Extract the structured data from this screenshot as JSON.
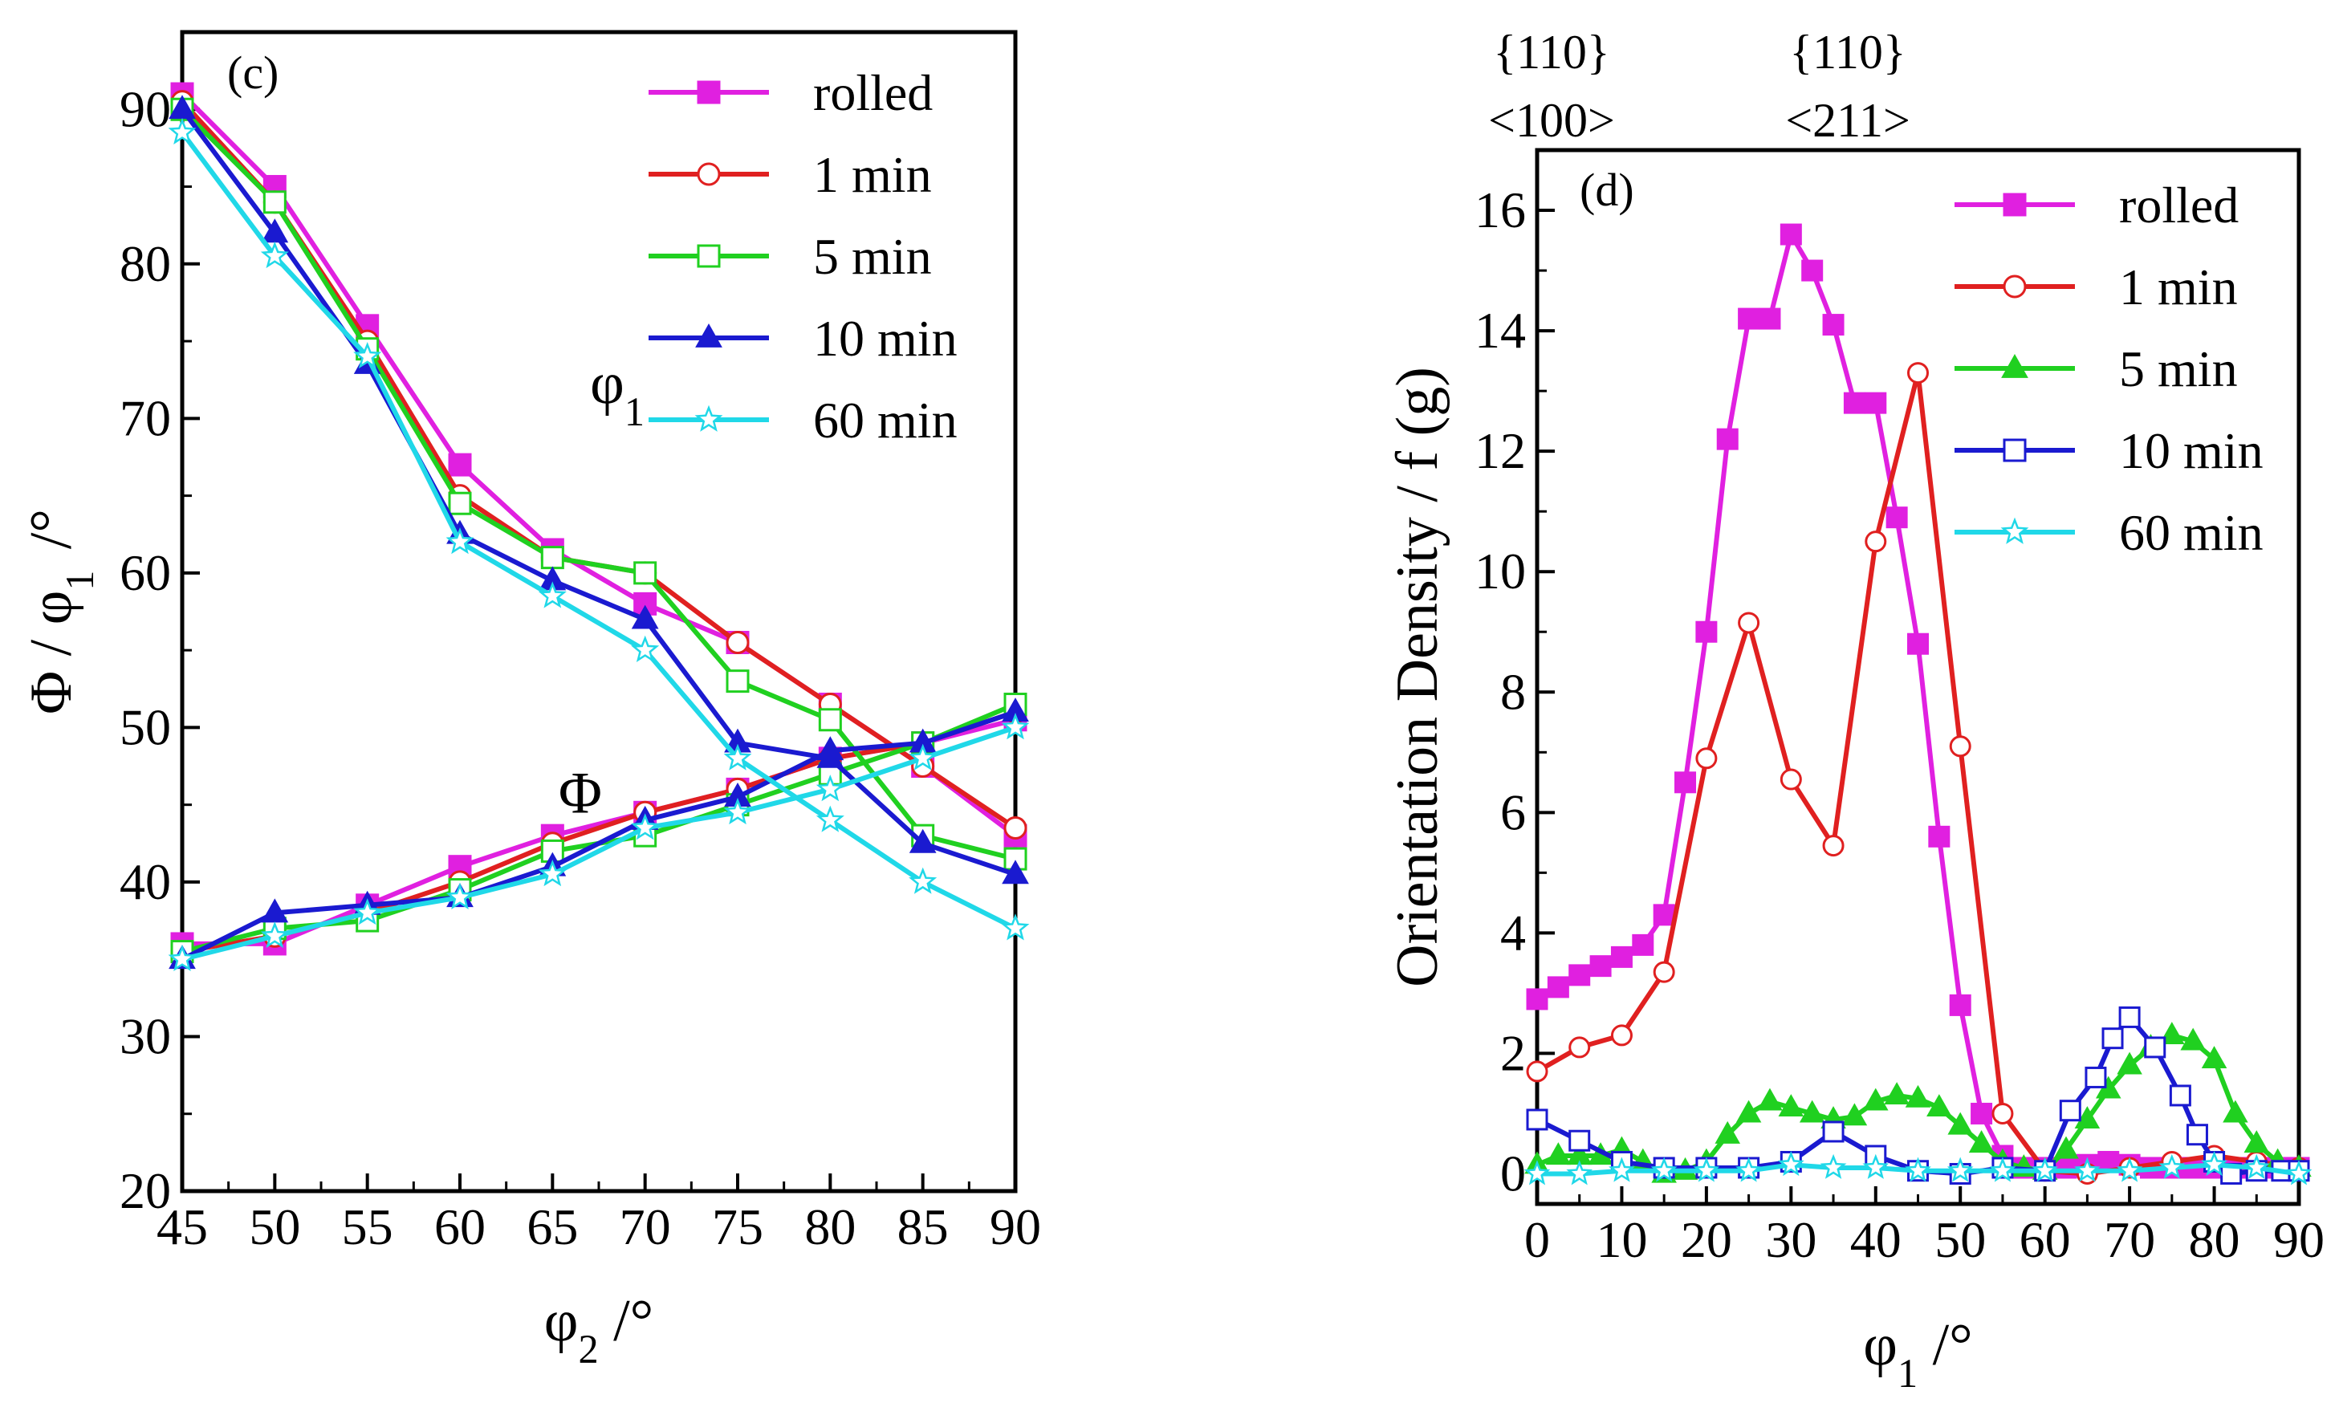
{
  "chart_data": [
    {
      "type": "line",
      "panel": "(c)",
      "xlabel": "φ2 /°",
      "ylabel": "Φ / φ1 /°",
      "xlim": [
        45,
        90
      ],
      "ylim": [
        20,
        95
      ],
      "xticks": [
        45,
        50,
        55,
        60,
        65,
        70,
        75,
        80,
        85,
        90
      ],
      "yticks": [
        20,
        30,
        40,
        50,
        60,
        70,
        80,
        90
      ],
      "legend_position": "top-right",
      "annotations": [
        {
          "text": "φ1",
          "x": 68.5,
          "y": 71
        },
        {
          "text": "Φ",
          "x": 66.5,
          "y": 44.5
        }
      ],
      "x": [
        45,
        50,
        55,
        60,
        65,
        70,
        75,
        80,
        85,
        90
      ],
      "series": [
        {
          "name": "rolled",
          "color": "#e020e0",
          "marker": "square-filled",
          "phi1": [
            91,
            85,
            76,
            67,
            61.5,
            58,
            55.5,
            51.5,
            47.5,
            43
          ],
          "Phi": [
            36,
            36,
            38.5,
            41,
            43,
            44.5,
            46,
            48,
            49,
            50.5
          ]
        },
        {
          "name": "1 min",
          "color": "#e02020",
          "marker": "circle-open",
          "phi1": [
            90.5,
            84,
            75,
            65,
            61,
            60,
            55.5,
            51.5,
            47.5,
            43.5
          ],
          "Phi": [
            35.5,
            36.5,
            38,
            40,
            42.5,
            44.5,
            46,
            48,
            49,
            51
          ]
        },
        {
          "name": "5 min",
          "color": "#20d020",
          "marker": "square-open",
          "phi1": [
            90,
            84,
            74.5,
            64.5,
            61,
            60,
            53,
            50.5,
            43,
            41.5
          ],
          "Phi": [
            35.5,
            37,
            37.5,
            39.5,
            42,
            43,
            45,
            47,
            49,
            51.5
          ]
        },
        {
          "name": "10 min",
          "color": "#1a1ad0",
          "marker": "triangle-filled",
          "phi1": [
            90,
            82,
            73.5,
            62.5,
            59.5,
            57,
            49,
            48,
            42.5,
            40.5
          ],
          "Phi": [
            35,
            38,
            38.5,
            39,
            41,
            44,
            45.5,
            48.5,
            49,
            51
          ]
        },
        {
          "name": "60 min",
          "color": "#20d8e8",
          "marker": "star-open",
          "phi1": [
            88.5,
            80.5,
            74,
            62,
            58.5,
            55,
            48,
            44,
            40,
            37
          ],
          "Phi": [
            35,
            36.5,
            38,
            39,
            40.5,
            43.5,
            44.5,
            46,
            48,
            50
          ]
        }
      ]
    },
    {
      "type": "line",
      "panel": "(d)",
      "xlabel": "φ1 /°",
      "ylabel": "Orientation Density / f (g)",
      "xlim": [
        0,
        90
      ],
      "ylim": [
        -0.5,
        17
      ],
      "xticks": [
        0,
        10,
        20,
        30,
        40,
        50,
        60,
        70,
        80,
        90
      ],
      "yticks": [
        0,
        2,
        4,
        6,
        8,
        10,
        12,
        14,
        16
      ],
      "legend_position": "top-right",
      "top_labels": [
        {
          "plane": "{110}",
          "direction": "<100>",
          "x": 0
        },
        {
          "plane": "{110}",
          "direction": "<211>",
          "x": 35
        }
      ],
      "series": [
        {
          "name": "rolled",
          "color": "#e020e0",
          "marker": "square-filled",
          "x": [
            0,
            2.5,
            5,
            7.5,
            10,
            12.5,
            15,
            17.5,
            20,
            22.5,
            25,
            27.5,
            30,
            32.5,
            35,
            37.5,
            40,
            42.5,
            45,
            47.5,
            50,
            52.5,
            55,
            57.5,
            60,
            62.5,
            65,
            67.5,
            70,
            72.5,
            75,
            77.5,
            80,
            82.5,
            85,
            87.5,
            90
          ],
          "values": [
            2.9,
            3.1,
            3.3,
            3.45,
            3.6,
            3.8,
            4.3,
            6.5,
            9.0,
            12.2,
            14.2,
            14.2,
            15.6,
            15.0,
            14.1,
            12.8,
            12.8,
            10.9,
            8.8,
            5.6,
            2.8,
            1.0,
            0.3,
            0.1,
            0.1,
            0.1,
            0.15,
            0.2,
            0.15,
            0.1,
            0.1,
            0.1,
            0.1,
            0.1,
            0.1,
            0.1,
            0.1
          ]
        },
        {
          "name": "1 min",
          "color": "#e02020",
          "marker": "circle-open",
          "x": [
            0,
            5,
            10,
            15,
            20,
            25,
            30,
            35,
            40,
            45,
            50,
            55,
            60,
            65,
            70,
            75,
            80,
            85,
            90
          ],
          "values": [
            1.7,
            2.1,
            2.3,
            3.35,
            6.9,
            9.15,
            6.55,
            5.45,
            10.5,
            13.3,
            7.1,
            1.0,
            0.05,
            0.0,
            0.1,
            0.2,
            0.3,
            0.2,
            0.1
          ]
        },
        {
          "name": "5 min",
          "color": "#20d020",
          "marker": "triangle-filled",
          "x": [
            0,
            2.5,
            5,
            7.5,
            10,
            12.5,
            15,
            17.5,
            20,
            22.5,
            25,
            27.5,
            30,
            32.5,
            35,
            37.5,
            40,
            42.5,
            45,
            47.5,
            50,
            52.5,
            55,
            57.5,
            60,
            62.5,
            65,
            67.5,
            70,
            72.5,
            75,
            77.5,
            80,
            82.5,
            85,
            87.5,
            90
          ],
          "values": [
            0.15,
            0.3,
            0.3,
            0.3,
            0.4,
            0.2,
            0.0,
            0.05,
            0.2,
            0.65,
            1.0,
            1.2,
            1.1,
            1.0,
            0.9,
            0.95,
            1.2,
            1.3,
            1.25,
            1.1,
            0.8,
            0.5,
            0.2,
            0.1,
            0.05,
            0.4,
            0.9,
            1.4,
            1.8,
            2.1,
            2.3,
            2.2,
            1.9,
            1.0,
            0.5,
            0.2,
            0.1
          ]
        },
        {
          "name": "10 min",
          "color": "#1a1ad0",
          "marker": "square-open",
          "x": [
            0,
            5,
            10,
            15,
            20,
            25,
            30,
            35,
            40,
            45,
            50,
            55,
            60,
            63,
            66,
            68,
            70,
            73,
            76,
            78,
            80,
            82,
            85,
            88,
            90
          ],
          "values": [
            0.9,
            0.55,
            0.2,
            0.1,
            0.1,
            0.1,
            0.2,
            0.7,
            0.3,
            0.05,
            0.0,
            0.1,
            0.05,
            1.05,
            1.6,
            2.25,
            2.6,
            2.1,
            1.3,
            0.65,
            0.2,
            0.0,
            0.05,
            0.05,
            0.05
          ]
        },
        {
          "name": "60 min",
          "color": "#20d8e8",
          "marker": "star-open",
          "x": [
            0,
            5,
            10,
            15,
            20,
            25,
            30,
            35,
            40,
            45,
            50,
            55,
            60,
            65,
            70,
            75,
            80,
            85,
            90
          ],
          "values": [
            0.0,
            0.0,
            0.05,
            0.05,
            0.05,
            0.05,
            0.15,
            0.1,
            0.1,
            0.05,
            0.05,
            0.05,
            0.05,
            0.05,
            0.05,
            0.1,
            0.15,
            0.1,
            0.0
          ]
        }
      ]
    }
  ]
}
